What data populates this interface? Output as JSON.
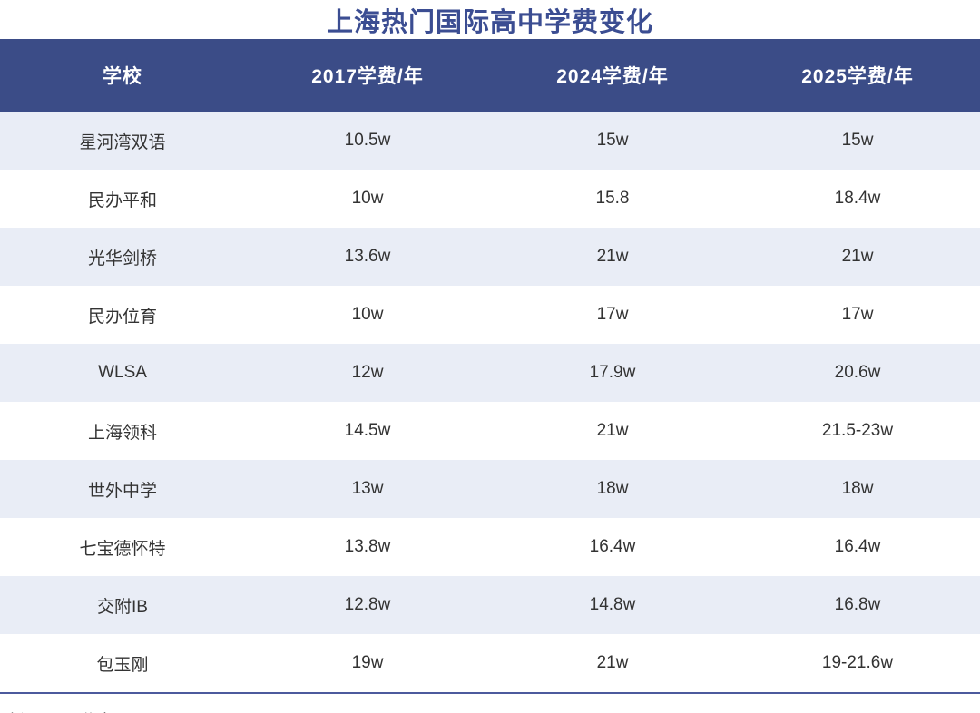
{
  "chart_data": {
    "type": "table",
    "title": "上海热门国际高中学费变化",
    "columns": [
      "学校",
      "2017学费/年",
      "2024学费/年",
      "2025学费/年"
    ],
    "rows": [
      [
        "星河湾双语",
        "10.5w",
        "15w",
        "15w"
      ],
      [
        "民办平和",
        "10w",
        "15.8",
        "18.4w"
      ],
      [
        "光华剑桥",
        "13.6w",
        "21w",
        "21w"
      ],
      [
        "民办位育",
        "10w",
        "17w",
        "17w"
      ],
      [
        "WLSA",
        "12w",
        "17.9w",
        "20.6w"
      ],
      [
        "上海领科",
        "14.5w",
        "21w",
        "21.5-23w"
      ],
      [
        "世外中学",
        "13w",
        "18w",
        "18w"
      ],
      [
        "七宝德怀特",
        "13.8w",
        "16.4w",
        "16.4w"
      ],
      [
        "交附IB",
        "12.8w",
        "14.8w",
        "16.8w"
      ],
      [
        "包玉刚",
        "19w",
        "21w",
        "19-21.6w"
      ]
    ],
    "source": "来源：公开信息",
    "layout": {
      "row_striping": "odd-rows-shaded",
      "header_position": "top"
    }
  },
  "colors": {
    "title_text": "#3B4D92",
    "header_bg": "#3B4C87",
    "header_text": "#FFFFFF",
    "row_shaded_bg": "#E9EDF6",
    "row_plain_bg": "#FFFFFF",
    "body_text": "#333333",
    "divider_line": "#4C5A9D"
  }
}
